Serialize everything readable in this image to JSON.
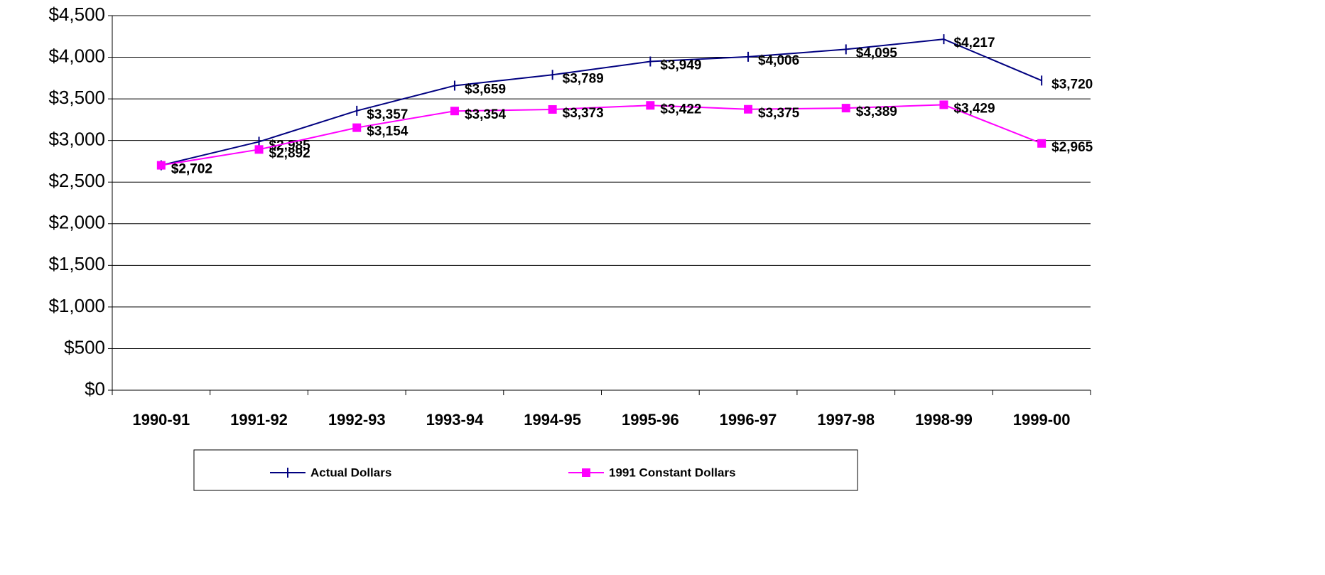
{
  "chart_data": {
    "type": "line",
    "categories": [
      "1990-91",
      "1991-92",
      "1992-93",
      "1993-94",
      "1994-95",
      "1995-96",
      "1996-97",
      "1997-98",
      "1998-99",
      "1999-00"
    ],
    "series": [
      {
        "name": "Actual Dollars",
        "color": "#000080",
        "values": [
          2702,
          2985,
          3357,
          3659,
          3789,
          3949,
          4006,
          4095,
          4217,
          3720
        ],
        "value_labels": [
          "$2,702",
          "$2,985",
          "$3,357",
          "$3,659",
          "$3,789",
          "$3,949",
          "$4,006",
          "$4,095",
          "$4,217",
          "$3,720"
        ]
      },
      {
        "name": "1991 Constant Dollars",
        "color": "#ff00ff",
        "values": [
          2702,
          2892,
          3154,
          3354,
          3373,
          3422,
          3375,
          3389,
          3429,
          2965
        ],
        "value_labels": [
          "$2,702",
          "$2,892",
          "$3,154",
          "$3,354",
          "$3,373",
          "$3,422",
          "$3,375",
          "$3,389",
          "$3,429",
          "$2,965"
        ]
      }
    ],
    "ylim": [
      0,
      4500
    ],
    "yticks": [
      {
        "value": 0,
        "label": "$0"
      },
      {
        "value": 500,
        "label": "$500"
      },
      {
        "value": 1000,
        "label": "$1,000"
      },
      {
        "value": 1500,
        "label": "$1,500"
      },
      {
        "value": 2000,
        "label": "$2,000"
      },
      {
        "value": 2500,
        "label": "$2,500"
      },
      {
        "value": 3000,
        "label": "$3,000"
      },
      {
        "value": 3500,
        "label": "$3,500"
      },
      {
        "value": 4000,
        "label": "$4,000"
      },
      {
        "value": 4500,
        "label": "$4,500"
      }
    ],
    "grid": true,
    "legend": "bottom"
  }
}
